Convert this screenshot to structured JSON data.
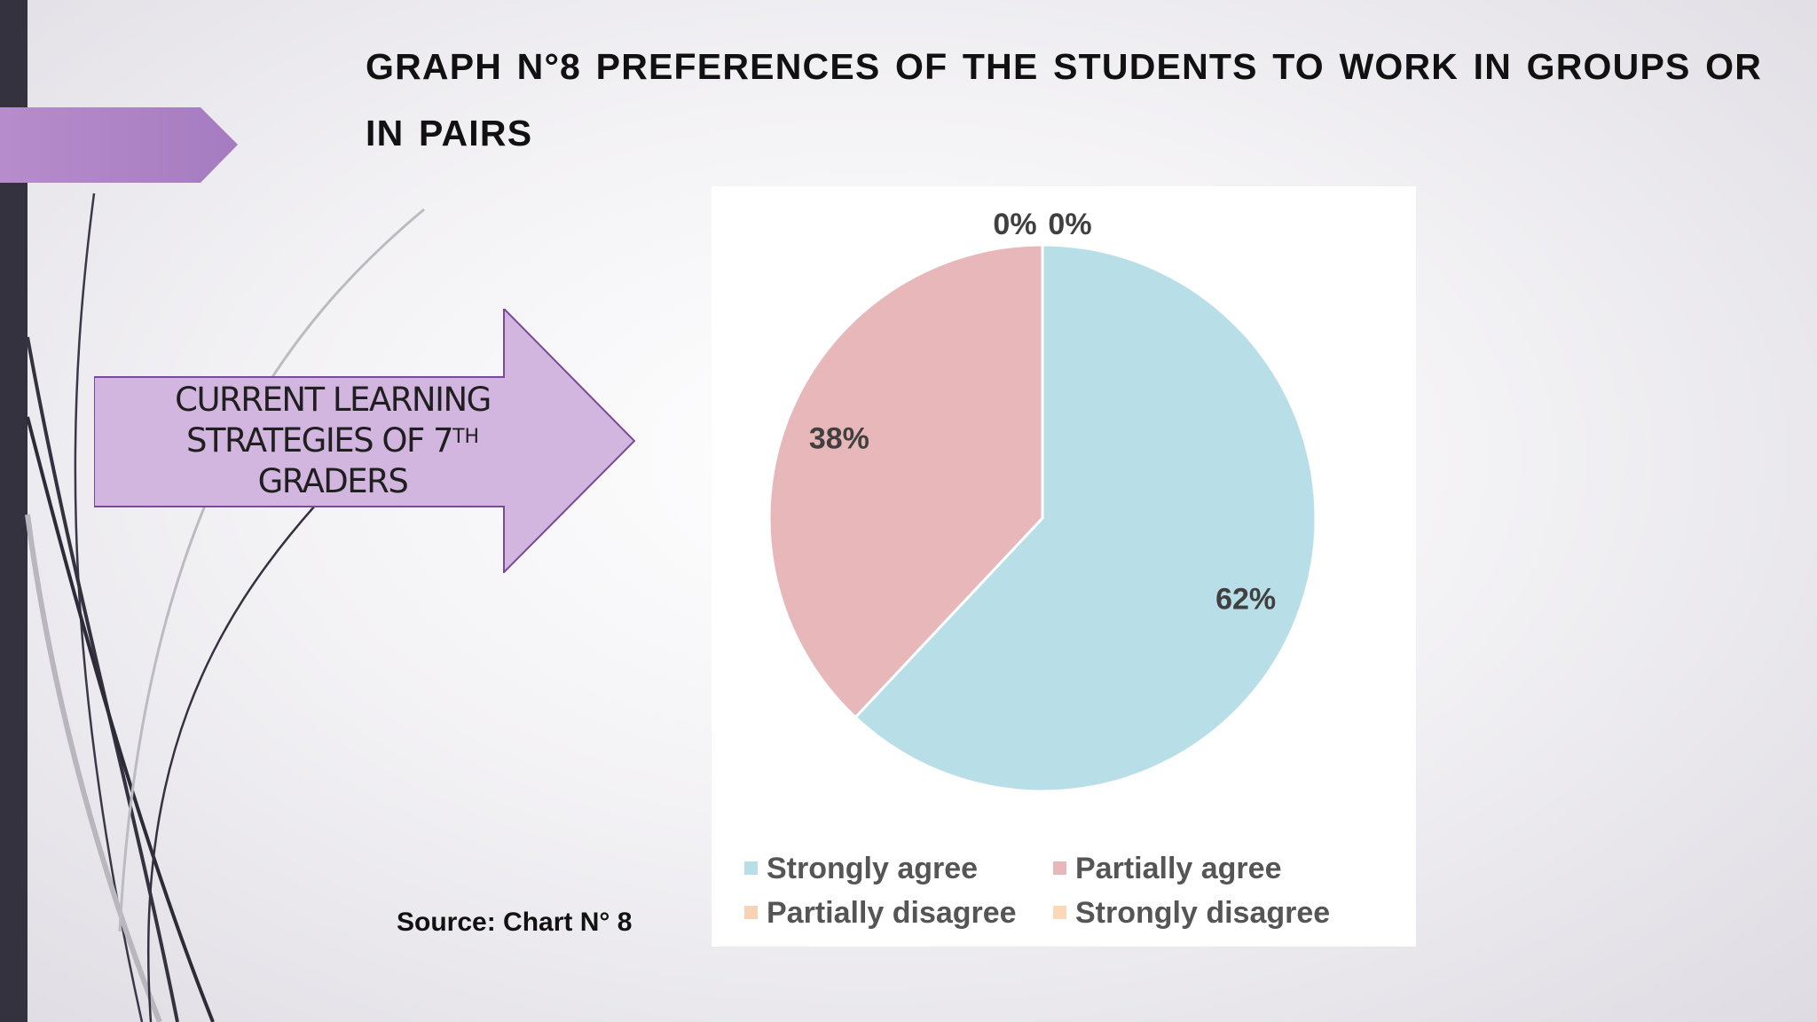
{
  "slide": {
    "title": "GRAPH N°8 PREFERENCES OF THE STUDENTS TO WORK IN GROUPS OR IN PAIRS",
    "arrow_label": {
      "line1": "CURRENT LEARNING",
      "line2": "STRATEGIES OF 7",
      "line2_sup": "TH",
      "line3": "GRADERS"
    },
    "source": "Source: Chart N° 8",
    "colors": {
      "accent_purple": "#a87fc1",
      "arrow_fill": "#d2b6e0",
      "arrow_stroke": "#7a4a9a",
      "sidebar": "#34323f"
    }
  },
  "chart_data": {
    "type": "pie",
    "title": "",
    "categories": [
      "Strongly agree",
      "Partially agree",
      "Partially disagree",
      "Strongly disagree"
    ],
    "values": [
      62,
      38,
      0,
      0
    ],
    "data_labels": [
      "62%",
      "38%",
      "0%",
      "0%"
    ],
    "colors": [
      "#b8dfe8",
      "#e7b7ba",
      "#f9d2b6",
      "#fbd9b8"
    ],
    "legend_position": "bottom"
  }
}
